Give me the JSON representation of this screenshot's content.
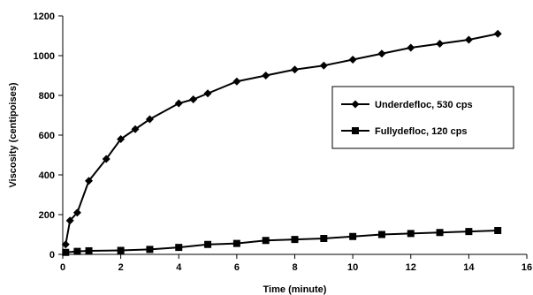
{
  "chart_data": {
    "type": "line",
    "title": "",
    "xlabel": "Time (minute)",
    "ylabel": "Viscosity (centipoises)",
    "xlim": [
      0,
      16
    ],
    "ylim": [
      0,
      1200
    ],
    "xticks": [
      0,
      2,
      4,
      6,
      8,
      10,
      12,
      14,
      16
    ],
    "yticks": [
      0,
      200,
      400,
      600,
      800,
      1000,
      1200
    ],
    "grid": false,
    "legend_position": "right",
    "series": [
      {
        "name": "Underdefloc, 530 cps",
        "marker": "diamond",
        "color": "#000000",
        "x": [
          0.1,
          0.25,
          0.5,
          0.9,
          1.5,
          2,
          2.5,
          3,
          4,
          4.5,
          5,
          6,
          7,
          8,
          9,
          10,
          11,
          12,
          13,
          14,
          15
        ],
        "y": [
          50,
          170,
          210,
          370,
          480,
          580,
          630,
          680,
          760,
          780,
          810,
          870,
          900,
          930,
          950,
          980,
          1010,
          1040,
          1060,
          1080,
          1110
        ]
      },
      {
        "name": "Fullydefloc, 120 cps",
        "marker": "square",
        "color": "#000000",
        "x": [
          0.1,
          0.5,
          0.9,
          2,
          3,
          4,
          5,
          6,
          7,
          8,
          9,
          10,
          11,
          12,
          13,
          14,
          15
        ],
        "y": [
          10,
          15,
          18,
          20,
          25,
          35,
          50,
          55,
          70,
          75,
          80,
          90,
          100,
          105,
          110,
          115,
          120
        ]
      }
    ]
  }
}
